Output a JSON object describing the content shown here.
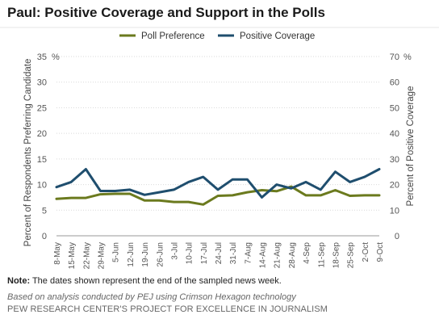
{
  "title": "Paul: Positive Coverage and Support in the Polls",
  "note_label": "Note:",
  "note_text": " The dates shown represent the end of the sampled news week.",
  "source": "Based on analysis conducted by PEJ using Crimson Hexagon technology",
  "organization": "PEW RESEARCH CENTER'S PROJECT FOR EXCELLENCE IN JOURNALISM",
  "chart_data": {
    "type": "line",
    "categories": [
      "8-May",
      "15-May",
      "22-May",
      "29-May",
      "5-Jun",
      "12-Jun",
      "19-Jun",
      "26-Jun",
      "3-Jul",
      "10-Jul",
      "17-Jul",
      "24-Jul",
      "31-Jul",
      "7-Aug",
      "14-Aug",
      "21-Aug",
      "28-Aug",
      "4-Sep",
      "11-Sep",
      "18-Sep",
      "25-Sep",
      "2-Oct",
      "9-Oct"
    ],
    "series": [
      {
        "name": "Poll Preference",
        "axis": "left",
        "color": "#6b7a1e",
        "values": [
          7.2,
          7.4,
          7.4,
          8.1,
          8.2,
          8.2,
          6.9,
          6.9,
          6.6,
          6.6,
          6.1,
          7.8,
          7.9,
          8.5,
          8.9,
          8.7,
          9.6,
          7.9,
          7.9,
          8.9,
          7.8,
          7.9,
          7.9
        ]
      },
      {
        "name": "Positive Coverage",
        "axis": "right",
        "color": "#1f4e6e",
        "values": [
          19,
          21,
          26,
          17.5,
          17.5,
          18,
          16,
          17,
          18,
          21,
          23,
          18,
          22,
          22,
          15,
          20,
          18.5,
          21,
          18,
          25,
          21,
          23,
          26
        ]
      }
    ],
    "left_axis": {
      "label": "Percent of Respondents Preferring Candidate",
      "ylim": [
        0,
        35
      ],
      "ticks": [
        0,
        5,
        10,
        15,
        20,
        25,
        30,
        35
      ],
      "unit": "%"
    },
    "right_axis": {
      "label": "Percent of Positive Coverage",
      "ylim": [
        0,
        70
      ],
      "ticks": [
        0,
        10,
        20,
        30,
        40,
        50,
        60,
        70
      ],
      "unit": "%"
    },
    "grid": true,
    "legend": "top-center"
  }
}
